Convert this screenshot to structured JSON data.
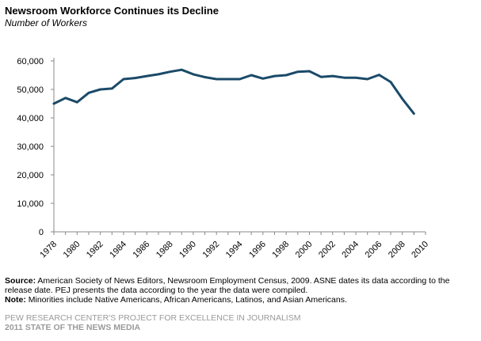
{
  "header": {
    "title": "Newsroom Workforce  Continues its Decline",
    "subtitle": "Number of Workers"
  },
  "chart_data": {
    "type": "line",
    "title": "Newsroom Workforce  Continues its Decline",
    "subtitle": "Number of Workers",
    "xlabel": "",
    "ylabel": "",
    "ylim": [
      0,
      60000
    ],
    "xlim": [
      1978,
      2010
    ],
    "yticks": [
      "0",
      "10,000",
      "20,000",
      "30,000",
      "40,000",
      "50,000",
      "60,000"
    ],
    "xticks": [
      "1978",
      "1980",
      "1982",
      "1984",
      "1986",
      "1988",
      "1990",
      "1992",
      "1994",
      "1996",
      "1998",
      "2000",
      "2002",
      "2004",
      "2006",
      "2008",
      "2010"
    ],
    "grid": false,
    "legend": "none",
    "line_color": "#1b4a68",
    "series": [
      {
        "x": [
          1978,
          1979,
          1980,
          1981,
          1982,
          1983,
          1984,
          1985,
          1986,
          1987,
          1988,
          1989,
          1990,
          1991,
          1992,
          1993,
          1994,
          1995,
          1996,
          1997,
          1998,
          1999,
          2000,
          2001,
          2002,
          2003,
          2004,
          2005,
          2006,
          2007,
          2008,
          2009
        ],
        "values": [
          45000,
          47000,
          45500,
          48800,
          50000,
          50300,
          53600,
          54000,
          54700,
          55300,
          56200,
          56900,
          55300,
          54300,
          53600,
          53600,
          53600,
          55000,
          53800,
          54700,
          55000,
          56200,
          56400,
          54400,
          54700,
          54100,
          54100,
          53600,
          55100,
          52600,
          46700,
          41500
        ]
      }
    ]
  },
  "footer": {
    "source_label": "Source:",
    "source_text": " American Society of News Editors, Newsroom Employment Census, 2009. ASNE dates its data according to the release date. PEJ presents the data according to the year the data were compiled.",
    "note_label": "Note:",
    "note_text": " Minorities include Native Americans, African Americans, Latinos, and Asian Americans.",
    "credit_line1": "PEW RESEARCH CENTER'S PROJECT FOR EXCELLENCE IN JOURNALISM",
    "credit_line2": "2011 STATE OF THE NEWS MEDIA"
  }
}
